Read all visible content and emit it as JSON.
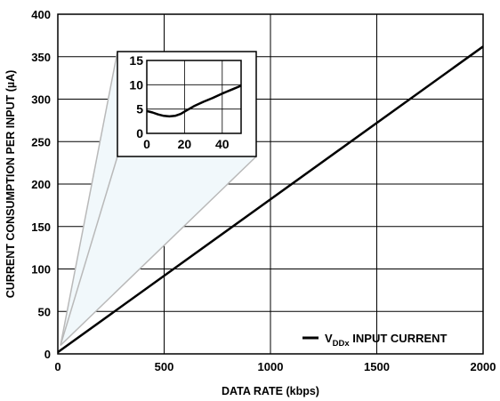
{
  "chart_data": {
    "type": "line",
    "xlabel": "DATA RATE (kbps)",
    "ylabel": "CURRENT CONSUMPTION PER INPUT (µA)",
    "xlim": [
      0,
      2000
    ],
    "ylim": [
      0,
      400
    ],
    "xticks": [
      "0",
      "500",
      "1000",
      "1500",
      "2000"
    ],
    "yticks": [
      "0",
      "50",
      "100",
      "150",
      "200",
      "250",
      "300",
      "350",
      "400"
    ],
    "grid": true,
    "legend_position": "bottom-right",
    "series": [
      {
        "name_main": "V",
        "name_sub": "DDx",
        "name_suffix": " INPUT CURRENT",
        "x": [
          0,
          2000
        ],
        "y": [
          2,
          362
        ]
      }
    ],
    "inset": {
      "xlim": [
        0,
        50
      ],
      "ylim": [
        0,
        15
      ],
      "xticks": [
        "0",
        "20",
        "40"
      ],
      "yticks": [
        "0",
        "5",
        "10",
        "15"
      ],
      "x": [
        0,
        3,
        6,
        9,
        12,
        15,
        18,
        21,
        25,
        30,
        35,
        40,
        45,
        50
      ],
      "y": [
        4.6,
        4.3,
        3.9,
        3.6,
        3.5,
        3.6,
        4.0,
        4.7,
        5.6,
        6.5,
        7.3,
        8.2,
        9.0,
        9.8
      ]
    }
  }
}
